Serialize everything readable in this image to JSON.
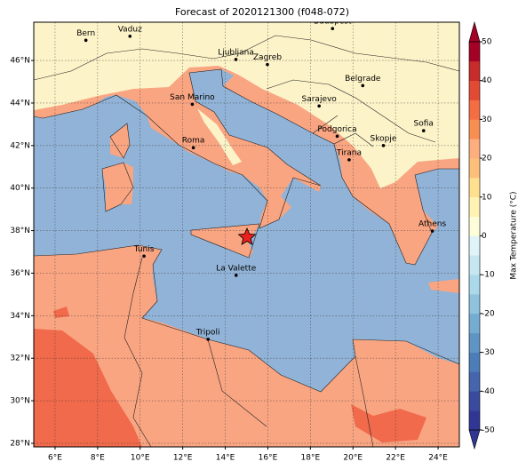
{
  "title": "Forecast of 2020121300 (f048-072)",
  "map": {
    "lon_range": [
      5,
      25
    ],
    "lat_range": [
      27.83,
      47.8
    ],
    "grid": true,
    "lon_ticks": [
      {
        "value": 6,
        "label": "6°E"
      },
      {
        "value": 8,
        "label": "8°E"
      },
      {
        "value": 10,
        "label": "10°E"
      },
      {
        "value": 12,
        "label": "12°E"
      },
      {
        "value": 14,
        "label": "14°E"
      },
      {
        "value": 16,
        "label": "16°E"
      },
      {
        "value": 18,
        "label": "18°E"
      },
      {
        "value": 20,
        "label": "20°E"
      },
      {
        "value": 22,
        "label": "22°E"
      },
      {
        "value": 24,
        "label": "24°E"
      }
    ],
    "lat_ticks": [
      {
        "value": 28,
        "label": "28°N"
      },
      {
        "value": 30,
        "label": "30°N"
      },
      {
        "value": 32,
        "label": "32°N"
      },
      {
        "value": 34,
        "label": "34°N"
      },
      {
        "value": 36,
        "label": "36°N"
      },
      {
        "value": 38,
        "label": "38°N"
      },
      {
        "value": 40,
        "label": "40°N"
      },
      {
        "value": 42,
        "label": "42°N"
      },
      {
        "value": 44,
        "label": "44°N"
      },
      {
        "value": 46,
        "label": "46°N"
      }
    ],
    "cities": [
      {
        "name": "Bern",
        "lon": 7.45,
        "lat": 46.95
      },
      {
        "name": "Vaduz",
        "lon": 9.52,
        "lat": 47.14
      },
      {
        "name": "Budapest",
        "lon": 19.04,
        "lat": 47.5
      },
      {
        "name": "Ljubljana",
        "lon": 14.5,
        "lat": 46.05
      },
      {
        "name": "Zagreb",
        "lon": 15.98,
        "lat": 45.81
      },
      {
        "name": "Belgrade",
        "lon": 20.46,
        "lat": 44.82
      },
      {
        "name": "San Marino",
        "lon": 12.45,
        "lat": 43.94
      },
      {
        "name": "Sarajevo",
        "lon": 18.41,
        "lat": 43.86
      },
      {
        "name": "Sofia",
        "lon": 23.32,
        "lat": 42.7
      },
      {
        "name": "Podgorica",
        "lon": 19.26,
        "lat": 42.44
      },
      {
        "name": "Skopje",
        "lon": 21.43,
        "lat": 42.0
      },
      {
        "name": "Roma",
        "lon": 12.5,
        "lat": 41.9
      },
      {
        "name": "Tirana",
        "lon": 19.82,
        "lat": 41.33
      },
      {
        "name": "Athens",
        "lon": 23.73,
        "lat": 37.98
      },
      {
        "name": "Tunis",
        "lon": 10.18,
        "lat": 36.8
      },
      {
        "name": "La Valette",
        "lon": 14.51,
        "lat": 35.9
      },
      {
        "name": "Tripoli",
        "lon": 13.19,
        "lat": 32.89
      }
    ]
  },
  "colorbar": {
    "label": "Max Temperature (°C)",
    "range": [
      -50,
      50
    ],
    "ticks": [
      -50,
      -40,
      -30,
      -20,
      -10,
      0,
      10,
      20,
      30,
      40,
      50
    ],
    "colors": [
      "#313695",
      "#3a4a9f",
      "#4565ad",
      "#4d7db8",
      "#5e95c4",
      "#74add1",
      "#8fc3dd",
      "#abd9e9",
      "#c6e6f0",
      "#e0f3f8",
      "#fefdd9",
      "#fff2b3",
      "#fee090",
      "#fdc07a",
      "#fcae7e",
      "#f98e52",
      "#f46d43",
      "#e34a33",
      "#c92a2a",
      "#a50026"
    ]
  }
}
